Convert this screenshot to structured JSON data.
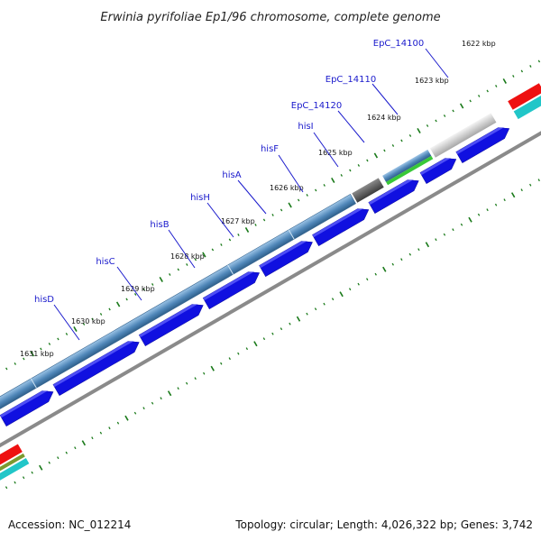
{
  "title": "Erwinia pyrifoliae Ep1/96 chromosome, complete genome",
  "footer": {
    "accession": "Accession: NC_012214",
    "summary": "Topology: circular; Length: 4,026,322 bp; Genes: 3,742"
  },
  "ticks": [
    "1622 kbp",
    "1623 kbp",
    "1624 kbp",
    "1625 kbp",
    "1626 kbp",
    "1627 kbp",
    "1628 kbp",
    "1629 kbp",
    "1630 kbp",
    "1631 kbp"
  ],
  "genes": [
    "EpC_14100",
    "EpC_14110",
    "EpC_14120",
    "hisI",
    "hisF",
    "hisA",
    "hisH",
    "hisB",
    "hisC",
    "hisD"
  ],
  "colors": {
    "cds": "#1010e0",
    "operon": "#4f86b8",
    "backbone": "#8a8a8a",
    "tick": "#1a7a1a",
    "label": "#1a1acc"
  }
}
